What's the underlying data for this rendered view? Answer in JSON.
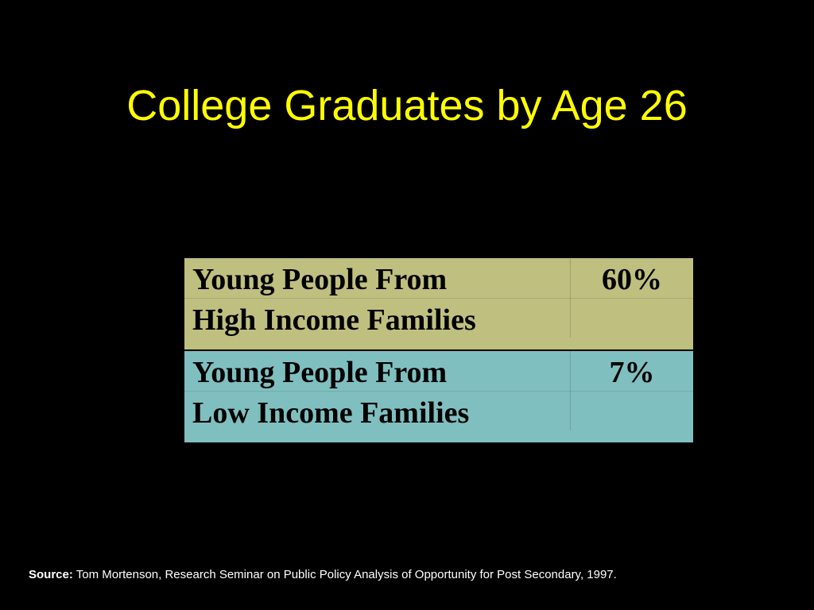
{
  "title": "College Graduates by Age 26",
  "table": {
    "rows": [
      {
        "label": [
          "Young People From",
          "High Income Families"
        ],
        "value": "60%"
      },
      {
        "label": [
          "Young People From",
          "Low Income Families"
        ],
        "value": "7%"
      }
    ]
  },
  "source": {
    "label": "Source:",
    "text": "Tom Mortenson, Research Seminar on Public Policy Analysis of Opportunity for Post Secondary, 1997."
  }
}
